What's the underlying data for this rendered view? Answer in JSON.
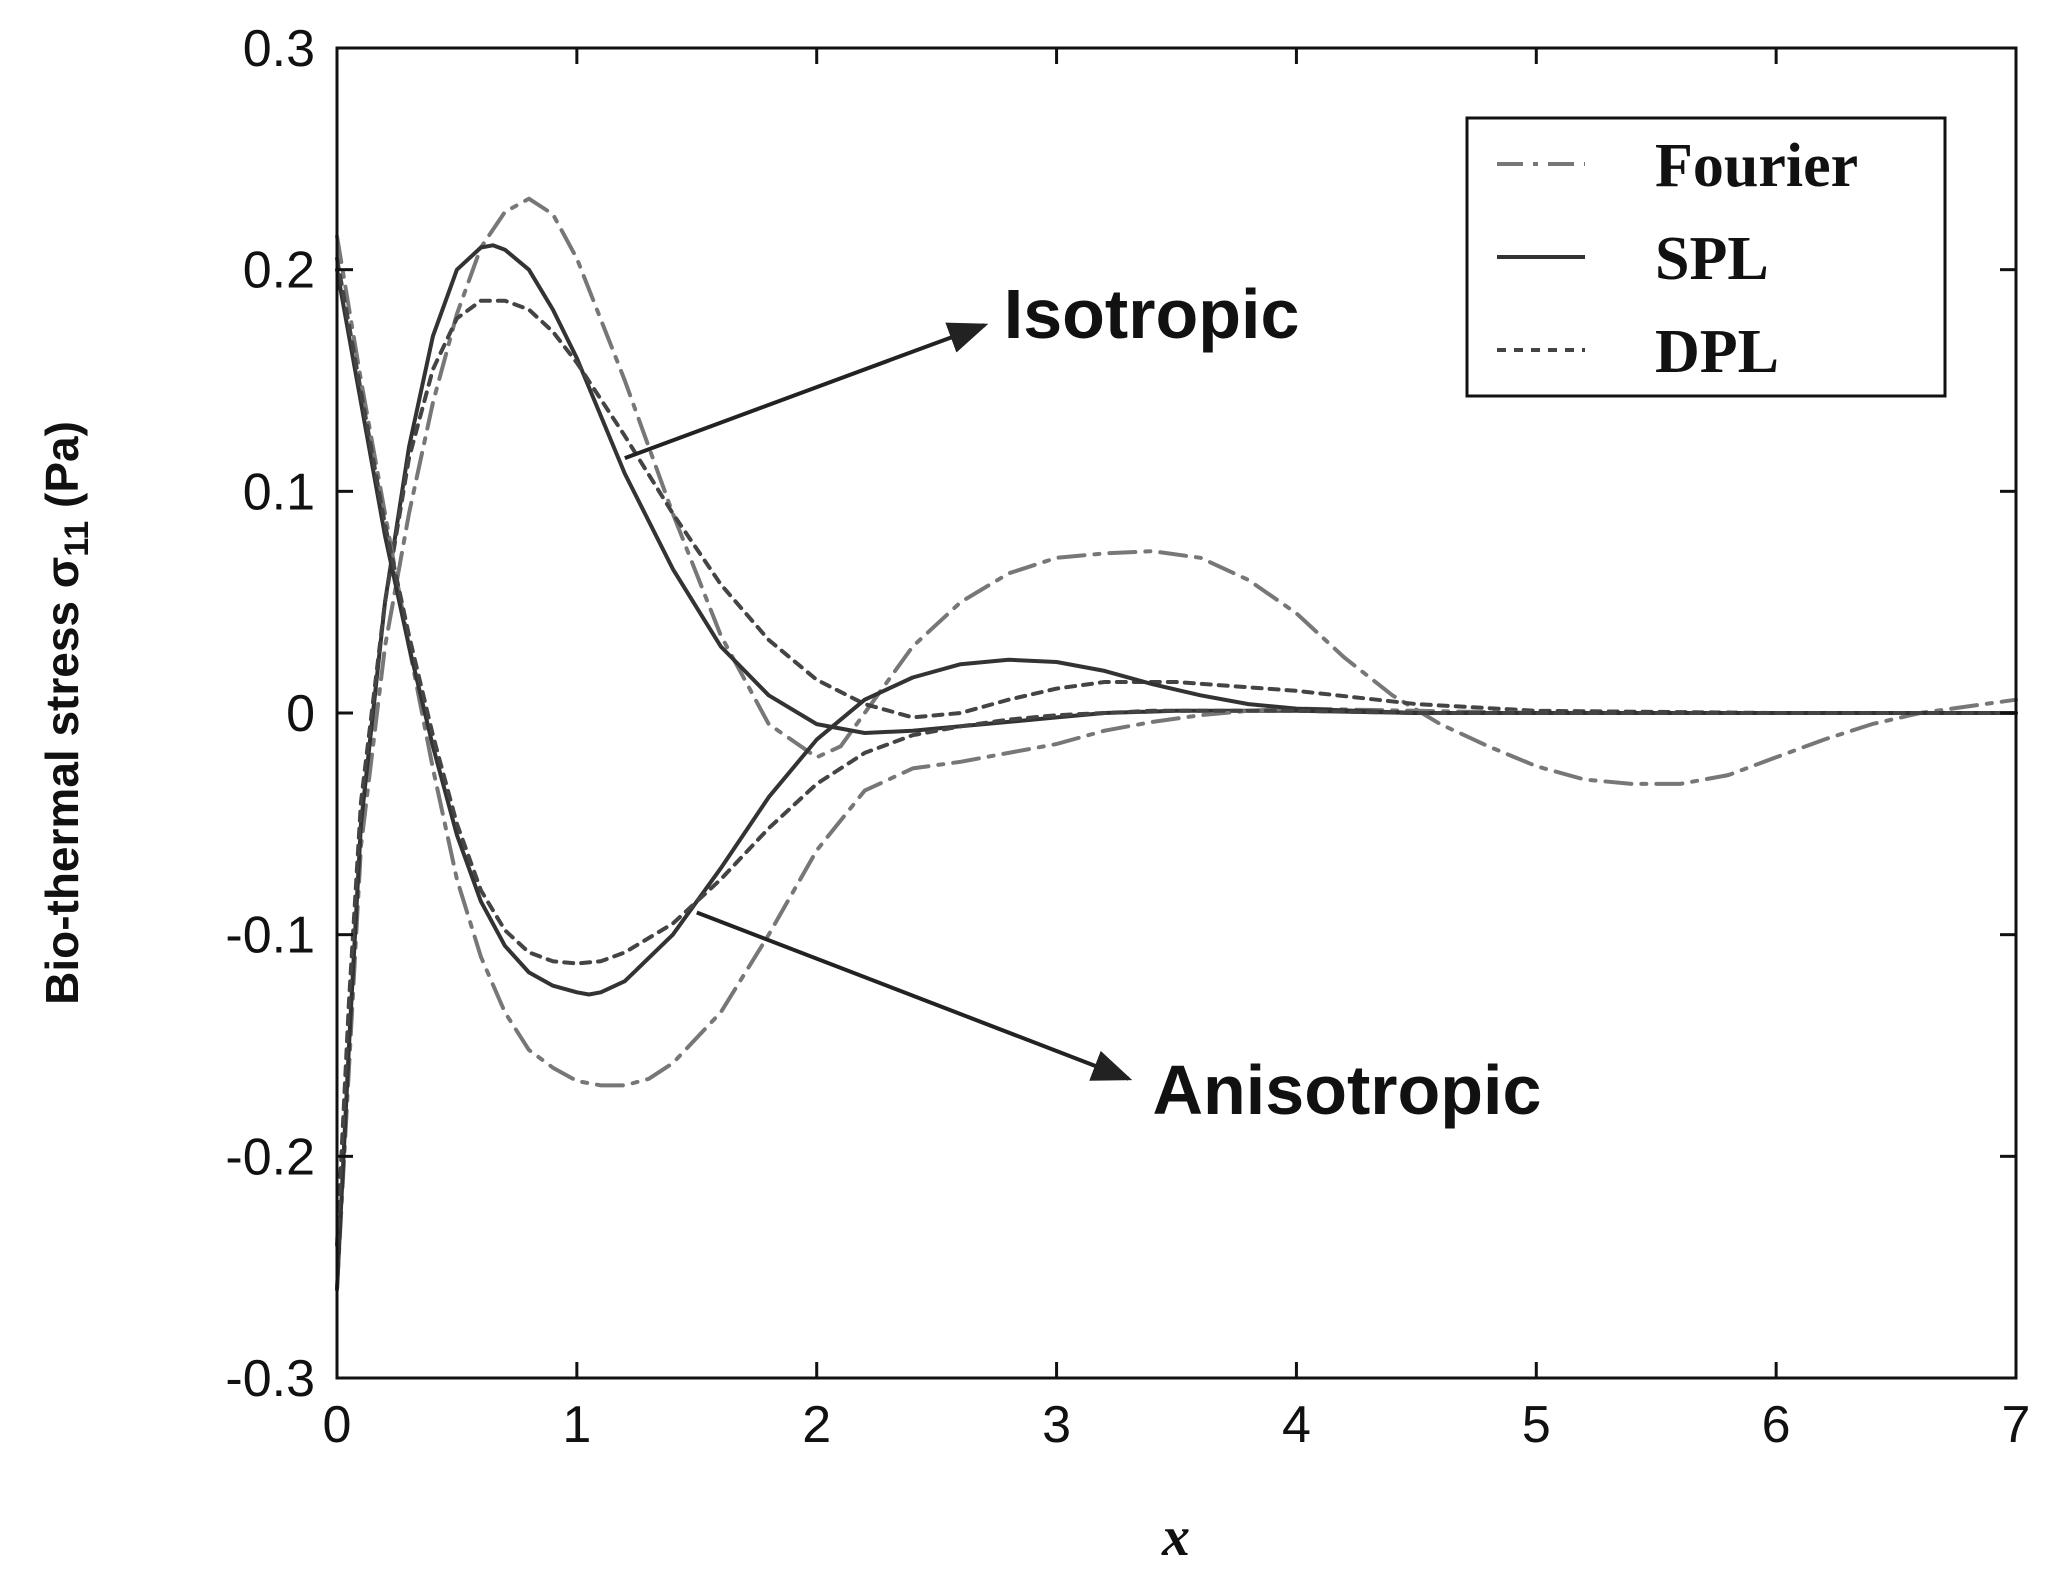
{
  "chart_data": {
    "type": "line",
    "xlabel": "x",
    "ylabel": "Bio-thermal stress σ",
    "ylabel_sub": "11",
    "ylabel_unit": " (Pa)",
    "xlim": [
      0,
      7
    ],
    "ylim": [
      -0.3,
      0.3
    ],
    "x_ticks": [
      0,
      1,
      2,
      3,
      4,
      5,
      6,
      7
    ],
    "x_tick_labels": [
      "0",
      "1",
      "2",
      "3",
      "4",
      "5",
      "6",
      "7"
    ],
    "y_ticks": [
      -0.3,
      -0.2,
      -0.1,
      0,
      0.1,
      0.2,
      0.3
    ],
    "y_tick_labels": [
      "-0.3",
      "-0.2",
      "-0.1",
      "0",
      "0.1",
      "0.2",
      "0.3"
    ],
    "grid": false,
    "legend_position": "top-right",
    "legend": [
      {
        "label": "Fourier",
        "style": "dash-dot",
        "color": "#777777"
      },
      {
        "label": "SPL",
        "style": "solid",
        "color": "#333333"
      },
      {
        "label": "DPL",
        "style": "dotted",
        "color": "#444444"
      }
    ],
    "annotations": [
      {
        "text": "Isotropic",
        "arrow_from": [
          1.2,
          0.115
        ],
        "arrow_to": [
          2.7,
          0.175
        ],
        "text_at": [
          2.78,
          0.18
        ]
      },
      {
        "text": "Anisotropic",
        "arrow_from": [
          1.5,
          -0.09
        ],
        "arrow_to": [
          3.3,
          -0.165
        ],
        "text_at": [
          3.4,
          -0.17
        ]
      }
    ],
    "series": [
      {
        "group": "isotropic",
        "legend": "Fourier",
        "style": "dash-dot",
        "color": "#777777",
        "x": [
          0,
          0.05,
          0.1,
          0.2,
          0.3,
          0.4,
          0.5,
          0.6,
          0.7,
          0.8,
          0.9,
          1.0,
          1.2,
          1.4,
          1.6,
          1.8,
          2.0,
          2.1,
          2.2,
          2.4,
          2.6,
          2.8,
          3.0,
          3.2,
          3.4,
          3.6,
          3.8,
          4.0,
          4.2,
          4.4,
          4.6,
          4.8,
          5.0,
          5.2,
          5.4,
          5.6,
          5.8,
          6.0,
          6.2,
          6.4,
          6.6,
          6.8,
          7.0
        ],
        "y": [
          -0.26,
          -0.16,
          -0.06,
          0.03,
          0.09,
          0.14,
          0.18,
          0.21,
          0.226,
          0.232,
          0.225,
          0.205,
          0.15,
          0.09,
          0.035,
          -0.005,
          -0.02,
          -0.015,
          0.0,
          0.03,
          0.05,
          0.063,
          0.07,
          0.072,
          0.073,
          0.07,
          0.06,
          0.045,
          0.025,
          0.008,
          -0.005,
          -0.015,
          -0.024,
          -0.03,
          -0.032,
          -0.032,
          -0.028,
          -0.02,
          -0.012,
          -0.005,
          0.0,
          0.003,
          0.006
        ]
      },
      {
        "group": "isotropic",
        "legend": "SPL",
        "style": "solid",
        "color": "#333333",
        "x": [
          0,
          0.05,
          0.1,
          0.2,
          0.3,
          0.4,
          0.5,
          0.6,
          0.65,
          0.7,
          0.8,
          0.9,
          1.0,
          1.2,
          1.4,
          1.6,
          1.8,
          2.0,
          2.2,
          2.4,
          2.6,
          2.8,
          3.0,
          3.2,
          3.5,
          4.0,
          4.5,
          5.0,
          6.0,
          7.0
        ],
        "y": [
          -0.26,
          -0.15,
          -0.05,
          0.05,
          0.12,
          0.17,
          0.2,
          0.21,
          0.211,
          0.209,
          0.2,
          0.182,
          0.16,
          0.108,
          0.065,
          0.03,
          0.008,
          -0.005,
          -0.009,
          -0.008,
          -0.006,
          -0.004,
          -0.002,
          0.0,
          0.001,
          0.001,
          0.0,
          0.0,
          0.0,
          0.0
        ]
      },
      {
        "group": "isotropic",
        "legend": "DPL",
        "style": "dotted",
        "color": "#444444",
        "x": [
          0,
          0.05,
          0.1,
          0.2,
          0.3,
          0.4,
          0.5,
          0.6,
          0.7,
          0.8,
          0.9,
          1.0,
          1.2,
          1.4,
          1.6,
          1.8,
          2.0,
          2.2,
          2.4,
          2.6,
          2.8,
          3.0,
          3.2,
          3.5,
          4.0,
          4.5,
          5.0,
          6.0,
          7.0
        ],
        "y": [
          -0.24,
          -0.13,
          -0.04,
          0.05,
          0.115,
          0.155,
          0.178,
          0.186,
          0.186,
          0.182,
          0.172,
          0.158,
          0.125,
          0.09,
          0.058,
          0.033,
          0.015,
          0.004,
          -0.002,
          0.0,
          0.006,
          0.011,
          0.014,
          0.014,
          0.01,
          0.004,
          0.001,
          0.0,
          0.0
        ]
      },
      {
        "group": "anisotropic",
        "legend": "Fourier",
        "style": "dash-dot",
        "color": "#777777",
        "x": [
          0,
          0.1,
          0.2,
          0.3,
          0.4,
          0.5,
          0.6,
          0.7,
          0.8,
          0.9,
          1.0,
          1.1,
          1.2,
          1.3,
          1.4,
          1.6,
          1.8,
          2.0,
          2.2,
          2.4,
          2.6,
          2.8,
          3.0,
          3.2,
          3.4,
          3.6,
          3.8,
          4.0,
          4.5,
          5.0,
          6.0,
          7.0
        ],
        "y": [
          0.215,
          0.15,
          0.09,
          0.03,
          -0.025,
          -0.075,
          -0.11,
          -0.135,
          -0.152,
          -0.16,
          -0.166,
          -0.168,
          -0.168,
          -0.165,
          -0.158,
          -0.135,
          -0.1,
          -0.062,
          -0.035,
          -0.025,
          -0.022,
          -0.018,
          -0.014,
          -0.008,
          -0.004,
          -0.001,
          0.001,
          0.002,
          0.001,
          0.0,
          0.0,
          0.0
        ]
      },
      {
        "group": "anisotropic",
        "legend": "SPL",
        "style": "solid",
        "color": "#333333",
        "x": [
          0,
          0.1,
          0.2,
          0.3,
          0.4,
          0.5,
          0.6,
          0.7,
          0.8,
          0.9,
          1.0,
          1.05,
          1.1,
          1.2,
          1.4,
          1.6,
          1.8,
          2.0,
          2.2,
          2.4,
          2.6,
          2.8,
          3.0,
          3.2,
          3.4,
          3.6,
          3.8,
          4.0,
          4.5,
          5.0,
          6.0,
          7.0
        ],
        "y": [
          0.2,
          0.14,
          0.08,
          0.03,
          -0.015,
          -0.055,
          -0.085,
          -0.105,
          -0.117,
          -0.123,
          -0.126,
          -0.127,
          -0.126,
          -0.121,
          -0.1,
          -0.07,
          -0.038,
          -0.012,
          0.006,
          0.016,
          0.022,
          0.024,
          0.023,
          0.019,
          0.013,
          0.008,
          0.004,
          0.002,
          0.0,
          0.0,
          0.0,
          0.0
        ]
      },
      {
        "group": "anisotropic",
        "legend": "DPL",
        "style": "dotted",
        "color": "#444444",
        "x": [
          0,
          0.1,
          0.2,
          0.3,
          0.4,
          0.5,
          0.6,
          0.7,
          0.8,
          0.9,
          1.0,
          1.1,
          1.2,
          1.4,
          1.6,
          1.8,
          2.0,
          2.2,
          2.4,
          2.6,
          2.8,
          3.0,
          3.2,
          3.4,
          3.6,
          3.8,
          4.0,
          4.5,
          5.0,
          6.0,
          7.0
        ],
        "y": [
          0.205,
          0.145,
          0.085,
          0.035,
          -0.01,
          -0.05,
          -0.08,
          -0.098,
          -0.108,
          -0.112,
          -0.113,
          -0.112,
          -0.108,
          -0.095,
          -0.075,
          -0.052,
          -0.032,
          -0.018,
          -0.01,
          -0.006,
          -0.003,
          -0.001,
          0.0,
          0.001,
          0.001,
          0.001,
          0.001,
          0.0,
          0.0,
          0.0,
          0.0
        ]
      }
    ]
  }
}
